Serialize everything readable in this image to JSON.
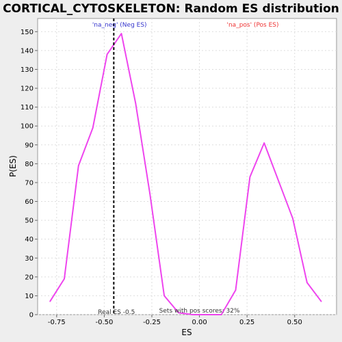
{
  "chart_data": {
    "type": "line",
    "title": "CORTICAL_CYTOSKELETON: Random ES distribution",
    "xlabel": "ES",
    "ylabel": "P(ES)",
    "xlim": [
      -0.85,
      0.72
    ],
    "ylim": [
      0,
      157
    ],
    "grid": true,
    "x_ticks": [
      -0.75,
      -0.5,
      -0.25,
      0.0,
      0.25,
      0.5
    ],
    "x_tick_labels": [
      "-0.75",
      "-0.50",
      "-0.25",
      "0.00",
      "0.25",
      "0.50"
    ],
    "y_ticks": [
      0,
      10,
      20,
      30,
      40,
      50,
      60,
      70,
      80,
      90,
      100,
      110,
      120,
      130,
      140,
      150
    ],
    "series": [
      {
        "color": "#ee44ee",
        "x": [
          -0.785,
          -0.71,
          -0.635,
          -0.56,
          -0.485,
          -0.41,
          -0.335,
          -0.26,
          -0.185,
          -0.11,
          -0.035,
          0.04,
          0.115,
          0.19,
          0.265,
          0.34,
          0.415,
          0.49,
          0.565,
          0.64
        ],
        "y": [
          7,
          19,
          79,
          99,
          138,
          149,
          112,
          64,
          10,
          1,
          0,
          0,
          0,
          13,
          73,
          91,
          71,
          51,
          17,
          7
        ]
      }
    ],
    "vline": {
      "x": -0.45,
      "label": "Real ES -0.5",
      "color": "#000000"
    },
    "annotations": {
      "neg_label": "'na_neg' (Neg ES)",
      "pos_label": "'na_pos' (Pos ES)",
      "pos_scores": "Sets with pos scores: 32%",
      "neg_color": "#3333cc",
      "pos_color": "#ee3333"
    }
  }
}
